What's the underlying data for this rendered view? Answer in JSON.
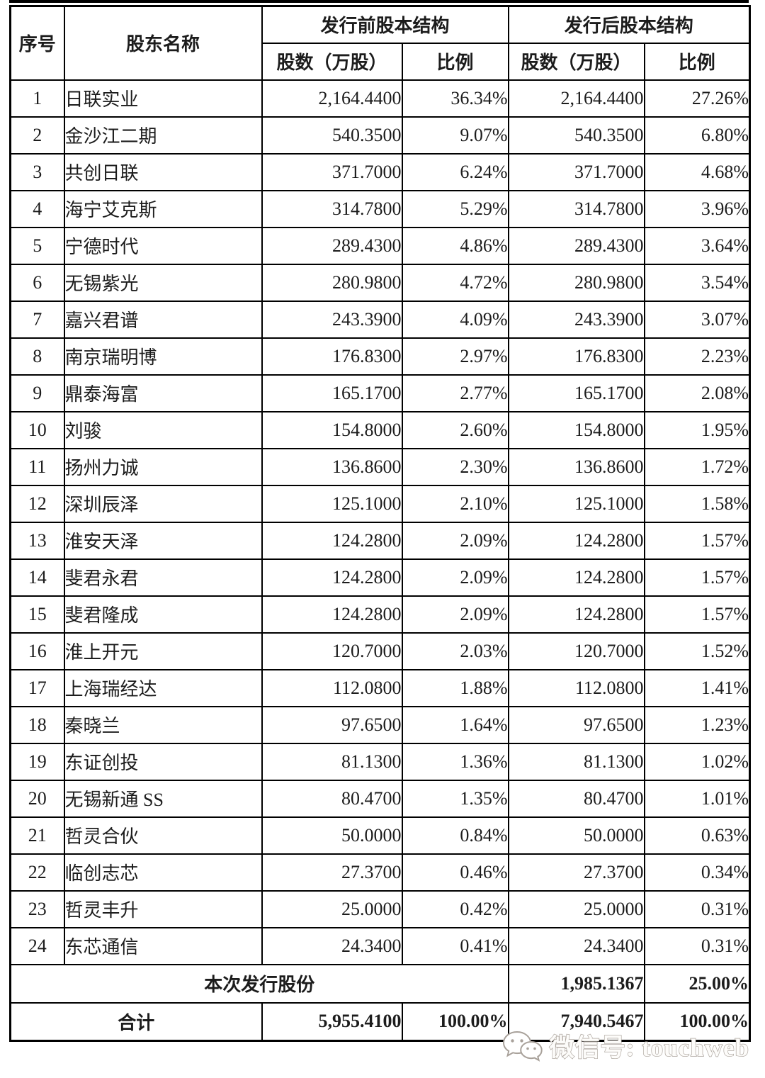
{
  "table": {
    "headers": {
      "col_no": "序号",
      "col_name": "股东名称",
      "pre_group": "发行前股本结构",
      "post_group": "发行后股本结构",
      "shares": "股数（万股）",
      "ratio": "比例"
    },
    "rows": [
      {
        "no": "1",
        "name": "日联实业",
        "pre_shares": "2,164.4400",
        "pre_ratio": "36.34%",
        "post_shares": "2,164.4400",
        "post_ratio": "27.26%"
      },
      {
        "no": "2",
        "name": "金沙江二期",
        "pre_shares": "540.3500",
        "pre_ratio": "9.07%",
        "post_shares": "540.3500",
        "post_ratio": "6.80%"
      },
      {
        "no": "3",
        "name": "共创日联",
        "pre_shares": "371.7000",
        "pre_ratio": "6.24%",
        "post_shares": "371.7000",
        "post_ratio": "4.68%"
      },
      {
        "no": "4",
        "name": "海宁艾克斯",
        "pre_shares": "314.7800",
        "pre_ratio": "5.29%",
        "post_shares": "314.7800",
        "post_ratio": "3.96%"
      },
      {
        "no": "5",
        "name": "宁德时代",
        "pre_shares": "289.4300",
        "pre_ratio": "4.86%",
        "post_shares": "289.4300",
        "post_ratio": "3.64%"
      },
      {
        "no": "6",
        "name": "无锡紫光",
        "pre_shares": "280.9800",
        "pre_ratio": "4.72%",
        "post_shares": "280.9800",
        "post_ratio": "3.54%"
      },
      {
        "no": "7",
        "name": "嘉兴君谱",
        "pre_shares": "243.3900",
        "pre_ratio": "4.09%",
        "post_shares": "243.3900",
        "post_ratio": "3.07%"
      },
      {
        "no": "8",
        "name": "南京瑞明博",
        "pre_shares": "176.8300",
        "pre_ratio": "2.97%",
        "post_shares": "176.8300",
        "post_ratio": "2.23%"
      },
      {
        "no": "9",
        "name": "鼎泰海富",
        "pre_shares": "165.1700",
        "pre_ratio": "2.77%",
        "post_shares": "165.1700",
        "post_ratio": "2.08%"
      },
      {
        "no": "10",
        "name": "刘骏",
        "pre_shares": "154.8000",
        "pre_ratio": "2.60%",
        "post_shares": "154.8000",
        "post_ratio": "1.95%"
      },
      {
        "no": "11",
        "name": "扬州力诚",
        "pre_shares": "136.8600",
        "pre_ratio": "2.30%",
        "post_shares": "136.8600",
        "post_ratio": "1.72%"
      },
      {
        "no": "12",
        "name": "深圳辰泽",
        "pre_shares": "125.1000",
        "pre_ratio": "2.10%",
        "post_shares": "125.1000",
        "post_ratio": "1.58%"
      },
      {
        "no": "13",
        "name": "淮安天泽",
        "pre_shares": "124.2800",
        "pre_ratio": "2.09%",
        "post_shares": "124.2800",
        "post_ratio": "1.57%"
      },
      {
        "no": "14",
        "name": "斐君永君",
        "pre_shares": "124.2800",
        "pre_ratio": "2.09%",
        "post_shares": "124.2800",
        "post_ratio": "1.57%"
      },
      {
        "no": "15",
        "name": "斐君隆成",
        "pre_shares": "124.2800",
        "pre_ratio": "2.09%",
        "post_shares": "124.2800",
        "post_ratio": "1.57%"
      },
      {
        "no": "16",
        "name": "淮上开元",
        "pre_shares": "120.7000",
        "pre_ratio": "2.03%",
        "post_shares": "120.7000",
        "post_ratio": "1.52%"
      },
      {
        "no": "17",
        "name": "上海瑞经达",
        "pre_shares": "112.0800",
        "pre_ratio": "1.88%",
        "post_shares": "112.0800",
        "post_ratio": "1.41%"
      },
      {
        "no": "18",
        "name": "秦晓兰",
        "pre_shares": "97.6500",
        "pre_ratio": "1.64%",
        "post_shares": "97.6500",
        "post_ratio": "1.23%"
      },
      {
        "no": "19",
        "name": "东证创投",
        "pre_shares": "81.1300",
        "pre_ratio": "1.36%",
        "post_shares": "81.1300",
        "post_ratio": "1.02%"
      },
      {
        "no": "20",
        "name": "无锡新通 SS",
        "pre_shares": "80.4700",
        "pre_ratio": "1.35%",
        "post_shares": "80.4700",
        "post_ratio": "1.01%"
      },
      {
        "no": "21",
        "name": "哲灵合伙",
        "pre_shares": "50.0000",
        "pre_ratio": "0.84%",
        "post_shares": "50.0000",
        "post_ratio": "0.63%"
      },
      {
        "no": "22",
        "name": "临创志芯",
        "pre_shares": "27.3700",
        "pre_ratio": "0.46%",
        "post_shares": "27.3700",
        "post_ratio": "0.34%"
      },
      {
        "no": "23",
        "name": "哲灵丰升",
        "pre_shares": "25.0000",
        "pre_ratio": "0.42%",
        "post_shares": "25.0000",
        "post_ratio": "0.31%"
      },
      {
        "no": "24",
        "name": "东芯通信",
        "pre_shares": "24.3400",
        "pre_ratio": "0.41%",
        "post_shares": "24.3400",
        "post_ratio": "0.31%"
      }
    ],
    "issue_row": {
      "label": "本次发行股份",
      "post_shares": "1,985.1367",
      "post_ratio": "25.00%"
    },
    "total_row": {
      "label": "合计",
      "pre_shares": "5,955.4100",
      "pre_ratio": "100.00%",
      "post_shares": "7,940.5467",
      "post_ratio": "100.00%"
    }
  },
  "watermark": {
    "text": "微信号: touchweb",
    "icon": "wechat-icon",
    "outline_color": "#a8a19a",
    "fill_color": "#fdfcfa"
  },
  "colors": {
    "border": "#000000",
    "text": "#1c1c1c",
    "background": "#ffffff"
  }
}
